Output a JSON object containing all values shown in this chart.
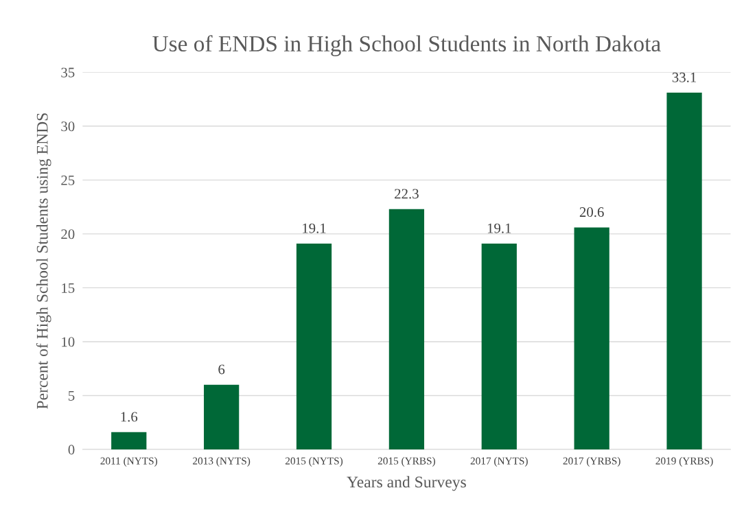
{
  "chart_data": {
    "type": "bar",
    "title": "Use of ENDS in High School Students in North Dakota",
    "xlabel": "Years and Surveys",
    "ylabel": "Percent of High School Students using ENDS",
    "categories": [
      "2011 (NYTS)",
      "2013 (NYTS)",
      "2015 (NYTS)",
      "2015 (YRBS)",
      "2017 (NYTS)",
      "2017 (YRBS)",
      "2019 (YRBS)"
    ],
    "values": [
      1.6,
      6,
      19.1,
      22.3,
      19.1,
      20.6,
      33.1
    ],
    "color": "#006837",
    "ylim": [
      0,
      35
    ],
    "yticks": [
      0,
      5,
      10,
      15,
      20,
      25,
      30,
      35
    ],
    "grid": "y",
    "data_labels": true
  }
}
